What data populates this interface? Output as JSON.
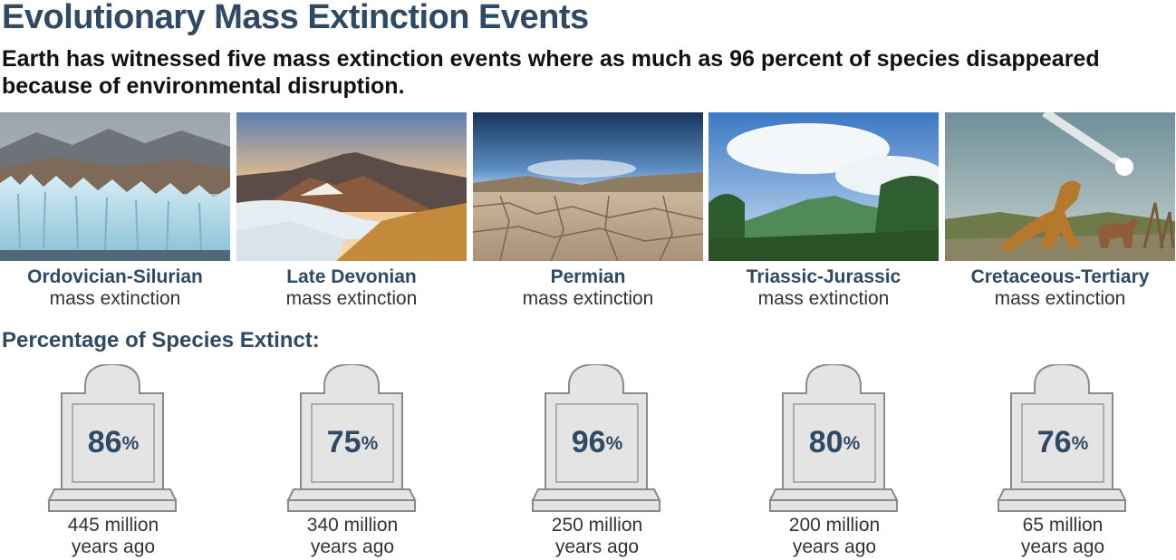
{
  "title": "Evolutionary Mass Extinction Events",
  "subtitle": "Earth has witnessed five mass extinction events where as much as 96 percent of species disappeared because of environmental disruption.",
  "events": [
    {
      "name": "Ordovician-Silurian",
      "kind": "mass extinction"
    },
    {
      "name": "Late Devonian",
      "kind": "mass extinction"
    },
    {
      "name": "Permian",
      "kind": "mass extinction"
    },
    {
      "name": "Triassic-Jurassic",
      "kind": "mass extinction"
    },
    {
      "name": "Cretaceous-Tertiary",
      "kind": "mass extinction"
    }
  ],
  "section_title": "Percentage of Species Extinct:",
  "tombstones": [
    {
      "percent": "86",
      "unit": "%",
      "when_line1": "445 million",
      "when_line2": "years ago"
    },
    {
      "percent": "75",
      "unit": "%",
      "when_line1": "340 million",
      "when_line2": "years ago"
    },
    {
      "percent": "96",
      "unit": "%",
      "when_line1": "250 million",
      "when_line2": "years ago"
    },
    {
      "percent": "80",
      "unit": "%",
      "when_line1": "200 million",
      "when_line2": "years ago"
    },
    {
      "percent": "76",
      "unit": "%",
      "when_line1": "65 million",
      "when_line2": "years ago"
    }
  ],
  "colors": {
    "heading": "#2e4a64",
    "stone_fill": "#e4e4e4",
    "stone_stroke": "#8a8a8a"
  }
}
